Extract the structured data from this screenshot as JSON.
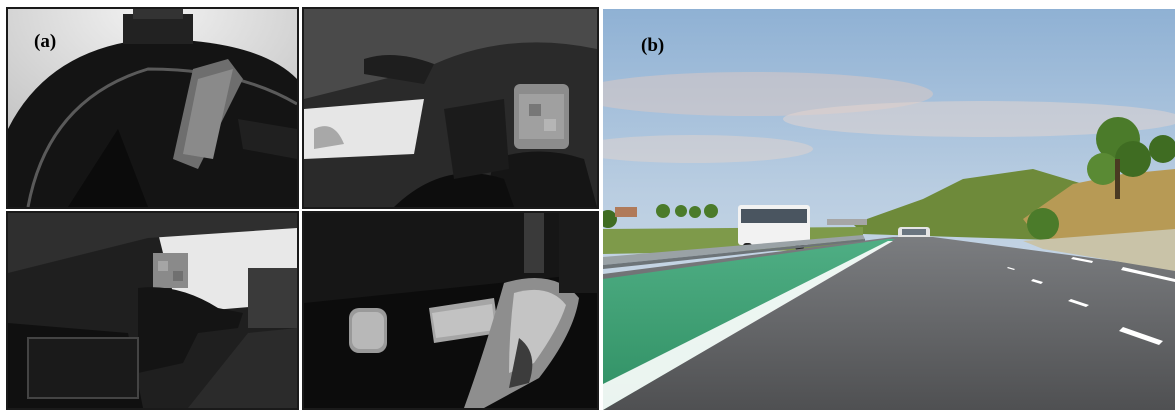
{
  "panel_a": {
    "label": "(a)"
  },
  "panel_b": {
    "label": "(b)"
  }
}
